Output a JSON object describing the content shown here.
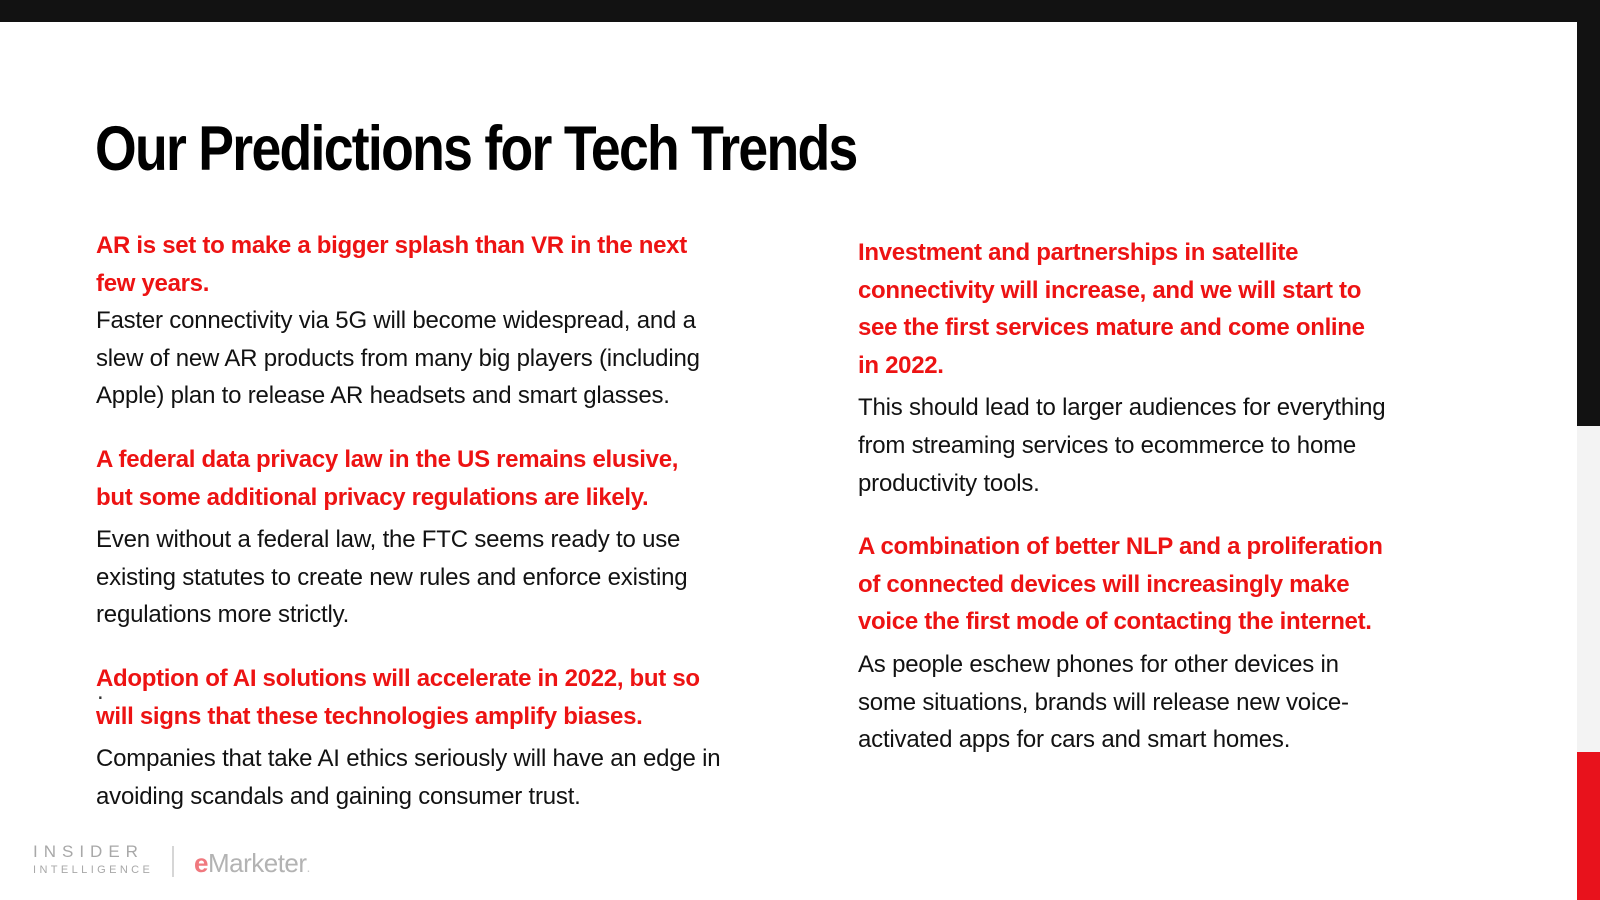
{
  "slide": {
    "title": "Our Predictions for Tech Trends"
  },
  "colors": {
    "top_bar_black": "#121212",
    "strip_black": "#121212",
    "strip_gray": "#f3f3f3",
    "strip_red": "#e8121c",
    "heading_red": "#ed1313",
    "body_black": "#121212",
    "footer_gray": "#a8a8a8",
    "emarketer_pink": "#f0787e"
  },
  "columns": {
    "left": {
      "blocks": [
        {
          "heading": "AR is set to make a bigger splash than VR in the next\nfew years.",
          "body": "Faster connectivity via 5G will become widespread, and a\nslew of new AR products from many big players (including\nApple) plan to release AR headsets and smart glasses."
        },
        {
          "heading": "A federal data privacy law in the US remains elusive,\nbut some additional privacy regulations are likely.",
          "body": "Even without a federal law, the FTC seems ready to use\nexisting statutes to create new rules and enforce existing\nregulations more strictly."
        },
        {
          "heading": "Adoption of AI solutions will accelerate in 2022, but so\nwill signs that these technologies amplify biases.",
          "body": "Companies that take AI ethics seriously will have an edge in\navoiding scandals and gaining consumer trust."
        }
      ]
    },
    "right": {
      "blocks": [
        {
          "heading": "Investment and partnerships in satellite\nconnectivity will increase, and we will start to\nsee the first services mature and come online\nin 2022.",
          "body": "This should lead to larger audiences for everything\nfrom streaming services to ecommerce to home\nproductivity tools."
        },
        {
          "heading": "A combination of better NLP and a proliferation\nof connected devices will increasingly make\nvoice the first mode of contacting the internet.",
          "body": "As people eschew phones for other devices in\nsome situations, brands will release new voice-\nactivated apps for cars and smart homes."
        }
      ]
    }
  },
  "stray_mark": ".",
  "footer": {
    "insider_line1": "INSIDER",
    "insider_line2": "INTELLIGENCE",
    "emarketer_initial": "e",
    "emarketer_rest": "Marketer",
    "emarketer_dot": "."
  }
}
